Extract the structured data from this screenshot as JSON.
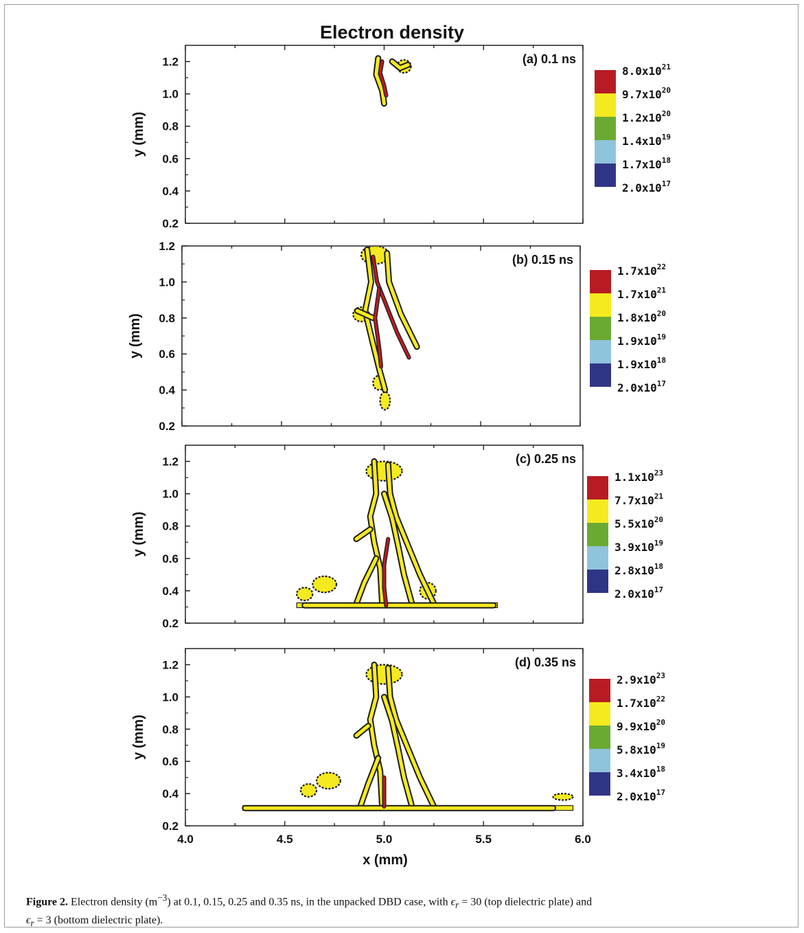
{
  "figure": {
    "main_title": "Electron density",
    "x_label": "x (mm)",
    "y_label": "y (mm)",
    "x_ticks": [
      "4.0",
      "4.5",
      "5.0",
      "5.5",
      "6.0"
    ]
  },
  "chart_data": [
    {
      "type": "contour",
      "panel_title": "(a) 0.1 ns",
      "xlim": [
        4.0,
        6.0
      ],
      "ylim": [
        0.2,
        1.3
      ],
      "y_ticks": [
        "0.2",
        "0.4",
        "0.6",
        "0.8",
        "1.0",
        "1.2"
      ],
      "legend_levels": [
        {
          "mant": "8.0x10",
          "exp": "21",
          "color": "#b81c22"
        },
        {
          "mant": "9.7x10",
          "exp": "20",
          "color": "#f5ea1f"
        },
        {
          "mant": "1.2x10",
          "exp": "20",
          "color": "#6aaa33"
        },
        {
          "mant": "1.4x10",
          "exp": "19",
          "color": "#8fc4dd"
        },
        {
          "mant": "1.7x10",
          "exp": "18",
          "color": "#2f3585"
        },
        {
          "mant": "2.0x10",
          "exp": "17",
          "color": ""
        }
      ],
      "streamer": {
        "channels": [
          [
            [
              4.99,
              1.2
            ],
            [
              4.98,
              1.13
            ],
            [
              5.0,
              1.05
            ],
            [
              5.01,
              0.99
            ]
          ]
        ],
        "yellow": [
          [
            [
              4.97,
              1.22
            ],
            [
              4.96,
              1.12
            ],
            [
              4.99,
              1.02
            ],
            [
              5.0,
              0.94
            ]
          ],
          [
            [
              5.04,
              1.2
            ],
            [
              5.08,
              1.16
            ],
            [
              5.12,
              1.18
            ]
          ]
        ],
        "blobs": [
          [
            5.1,
            1.17,
            0.035,
            0.04
          ]
        ],
        "base": null
      }
    },
    {
      "type": "contour",
      "panel_title": "(b) 0.15 ns",
      "xlim": [
        4.0,
        6.0
      ],
      "ylim": [
        0.2,
        1.2
      ],
      "y_ticks": [
        "0.2",
        "0.4",
        "0.6",
        "0.8",
        "1.0",
        "1.2"
      ],
      "legend_levels": [
        {
          "mant": "1.7x10",
          "exp": "22",
          "color": "#b81c22"
        },
        {
          "mant": "1.7x10",
          "exp": "21",
          "color": "#f5ea1f"
        },
        {
          "mant": "1.8x10",
          "exp": "20",
          "color": "#6aaa33"
        },
        {
          "mant": "1.9x10",
          "exp": "19",
          "color": "#8fc4dd"
        },
        {
          "mant": "1.9x10",
          "exp": "18",
          "color": "#2f3585"
        },
        {
          "mant": "2.0x10",
          "exp": "17",
          "color": ""
        }
      ],
      "streamer": {
        "channels": [
          [
            [
              4.96,
              1.14
            ],
            [
              4.98,
              1.0
            ],
            [
              5.03,
              0.86
            ],
            [
              5.08,
              0.72
            ],
            [
              5.14,
              0.58
            ]
          ],
          [
            [
              4.99,
              0.96
            ],
            [
              4.97,
              0.8
            ],
            [
              4.99,
              0.64
            ],
            [
              5.0,
              0.53
            ]
          ]
        ],
        "yellow": [
          [
            [
              4.93,
              1.18
            ],
            [
              4.95,
              1.0
            ],
            [
              4.92,
              0.84
            ],
            [
              4.95,
              0.7
            ],
            [
              4.99,
              0.52
            ],
            [
              5.02,
              0.4
            ]
          ],
          [
            [
              5.03,
              1.16
            ],
            [
              5.04,
              1.0
            ],
            [
              5.1,
              0.82
            ],
            [
              5.18,
              0.64
            ]
          ],
          [
            [
              4.88,
              0.84
            ],
            [
              4.96,
              0.8
            ]
          ]
        ],
        "blobs": [
          [
            4.97,
            1.15,
            0.07,
            0.05
          ],
          [
            4.9,
            0.82,
            0.04,
            0.04
          ],
          [
            5.02,
            0.34,
            0.025,
            0.05
          ],
          [
            4.99,
            0.44,
            0.03,
            0.04
          ]
        ],
        "base": null
      }
    },
    {
      "type": "contour",
      "panel_title": "(c) 0.25 ns",
      "xlim": [
        4.0,
        6.0
      ],
      "ylim": [
        0.2,
        1.3
      ],
      "y_ticks": [
        "0.2",
        "0.4",
        "0.6",
        "0.8",
        "1.0",
        "1.2"
      ],
      "legend_levels": [
        {
          "mant": "1.1x10",
          "exp": "23",
          "color": "#b81c22"
        },
        {
          "mant": "7.7x10",
          "exp": "21",
          "color": "#f5ea1f"
        },
        {
          "mant": "5.5x10",
          "exp": "20",
          "color": "#6aaa33"
        },
        {
          "mant": "3.9x10",
          "exp": "19",
          "color": "#8fc4dd"
        },
        {
          "mant": "2.8x10",
          "exp": "18",
          "color": "#2f3585"
        },
        {
          "mant": "2.0x10",
          "exp": "17",
          "color": ""
        }
      ],
      "streamer": {
        "channels": [
          [
            [
              5.02,
              0.72
            ],
            [
              5.0,
              0.56
            ],
            [
              5.0,
              0.42
            ],
            [
              5.01,
              0.31
            ]
          ]
        ],
        "yellow": [
          [
            [
              4.95,
              1.2
            ],
            [
              4.96,
              1.0
            ],
            [
              4.93,
              0.86
            ],
            [
              4.95,
              0.7
            ],
            [
              4.98,
              0.54
            ],
            [
              4.99,
              0.32
            ]
          ],
          [
            [
              5.02,
              1.18
            ],
            [
              5.03,
              1.0
            ],
            [
              5.06,
              0.86
            ],
            [
              5.12,
              0.68
            ],
            [
              5.18,
              0.5
            ],
            [
              5.25,
              0.32
            ]
          ],
          [
            [
              5.0,
              1.0
            ],
            [
              5.04,
              0.85
            ],
            [
              5.07,
              0.68
            ],
            [
              5.1,
              0.5
            ],
            [
              5.14,
              0.32
            ]
          ],
          [
            [
              4.93,
              0.78
            ],
            [
              4.86,
              0.72
            ]
          ],
          [
            [
              4.96,
              0.6
            ],
            [
              4.9,
              0.45
            ],
            [
              4.86,
              0.32
            ]
          ],
          [
            [
              4.6,
              0.31
            ],
            [
              5.55,
              0.31
            ]
          ]
        ],
        "blobs": [
          [
            5.0,
            1.14,
            0.09,
            0.06
          ],
          [
            4.7,
            0.44,
            0.06,
            0.05
          ],
          [
            4.6,
            0.38,
            0.04,
            0.04
          ],
          [
            5.22,
            0.4,
            0.04,
            0.05
          ]
        ],
        "base": [
          4.56,
          5.57,
          0.3
        ]
      }
    },
    {
      "type": "contour",
      "panel_title": "(d) 0.35 ns",
      "xlim": [
        4.0,
        6.0
      ],
      "ylim": [
        0.2,
        1.3
      ],
      "y_ticks": [
        "0.2",
        "0.4",
        "0.6",
        "0.8",
        "1.0",
        "1.2"
      ],
      "legend_levels": [
        {
          "mant": "2.9x10",
          "exp": "23",
          "color": "#b81c22"
        },
        {
          "mant": "1.7x10",
          "exp": "22",
          "color": "#f5ea1f"
        },
        {
          "mant": "9.9x10",
          "exp": "20",
          "color": "#6aaa33"
        },
        {
          "mant": "5.8x10",
          "exp": "19",
          "color": "#8fc4dd"
        },
        {
          "mant": "3.4x10",
          "exp": "18",
          "color": "#2f3585"
        },
        {
          "mant": "2.0x10",
          "exp": "17",
          "color": ""
        }
      ],
      "streamer": {
        "channels": [
          [
            [
              5.0,
              0.5
            ],
            [
              5.0,
              0.32
            ]
          ]
        ],
        "yellow": [
          [
            [
              4.95,
              1.2
            ],
            [
              4.96,
              1.0
            ],
            [
              4.93,
              0.86
            ],
            [
              4.95,
              0.7
            ],
            [
              4.98,
              0.54
            ],
            [
              4.99,
              0.32
            ]
          ],
          [
            [
              5.02,
              1.18
            ],
            [
              5.03,
              1.0
            ],
            [
              5.06,
              0.86
            ],
            [
              5.12,
              0.68
            ],
            [
              5.18,
              0.5
            ],
            [
              5.25,
              0.32
            ]
          ],
          [
            [
              5.0,
              1.0
            ],
            [
              5.04,
              0.85
            ],
            [
              5.07,
              0.68
            ],
            [
              5.1,
              0.5
            ],
            [
              5.14,
              0.32
            ]
          ],
          [
            [
              4.92,
              0.82
            ],
            [
              4.86,
              0.76
            ]
          ],
          [
            [
              4.97,
              0.62
            ],
            [
              4.92,
              0.46
            ],
            [
              4.88,
              0.32
            ]
          ],
          [
            [
              4.3,
              0.31
            ],
            [
              5.85,
              0.31
            ]
          ]
        ],
        "blobs": [
          [
            5.0,
            1.14,
            0.09,
            0.06
          ],
          [
            4.72,
            0.48,
            0.06,
            0.05
          ],
          [
            4.62,
            0.42,
            0.04,
            0.04
          ],
          [
            5.9,
            0.38,
            0.05,
            0.02
          ]
        ],
        "base": [
          4.29,
          5.95,
          0.3
        ]
      }
    }
  ],
  "caption": {
    "label": "Figure 2.",
    "text1": " Electron density (m",
    "sup": "−3",
    "text2": ") at 0.1, 0.15, 0.25 and 0.35 ns, in the unpacked DBD case, with ",
    "eps1": "ϵ",
    "eq1": " = 30 (top dielectric plate) and ",
    "eps2": "ϵ",
    "eq2": " = 3 (bottom dielectric plate).",
    "sub": "r"
  }
}
